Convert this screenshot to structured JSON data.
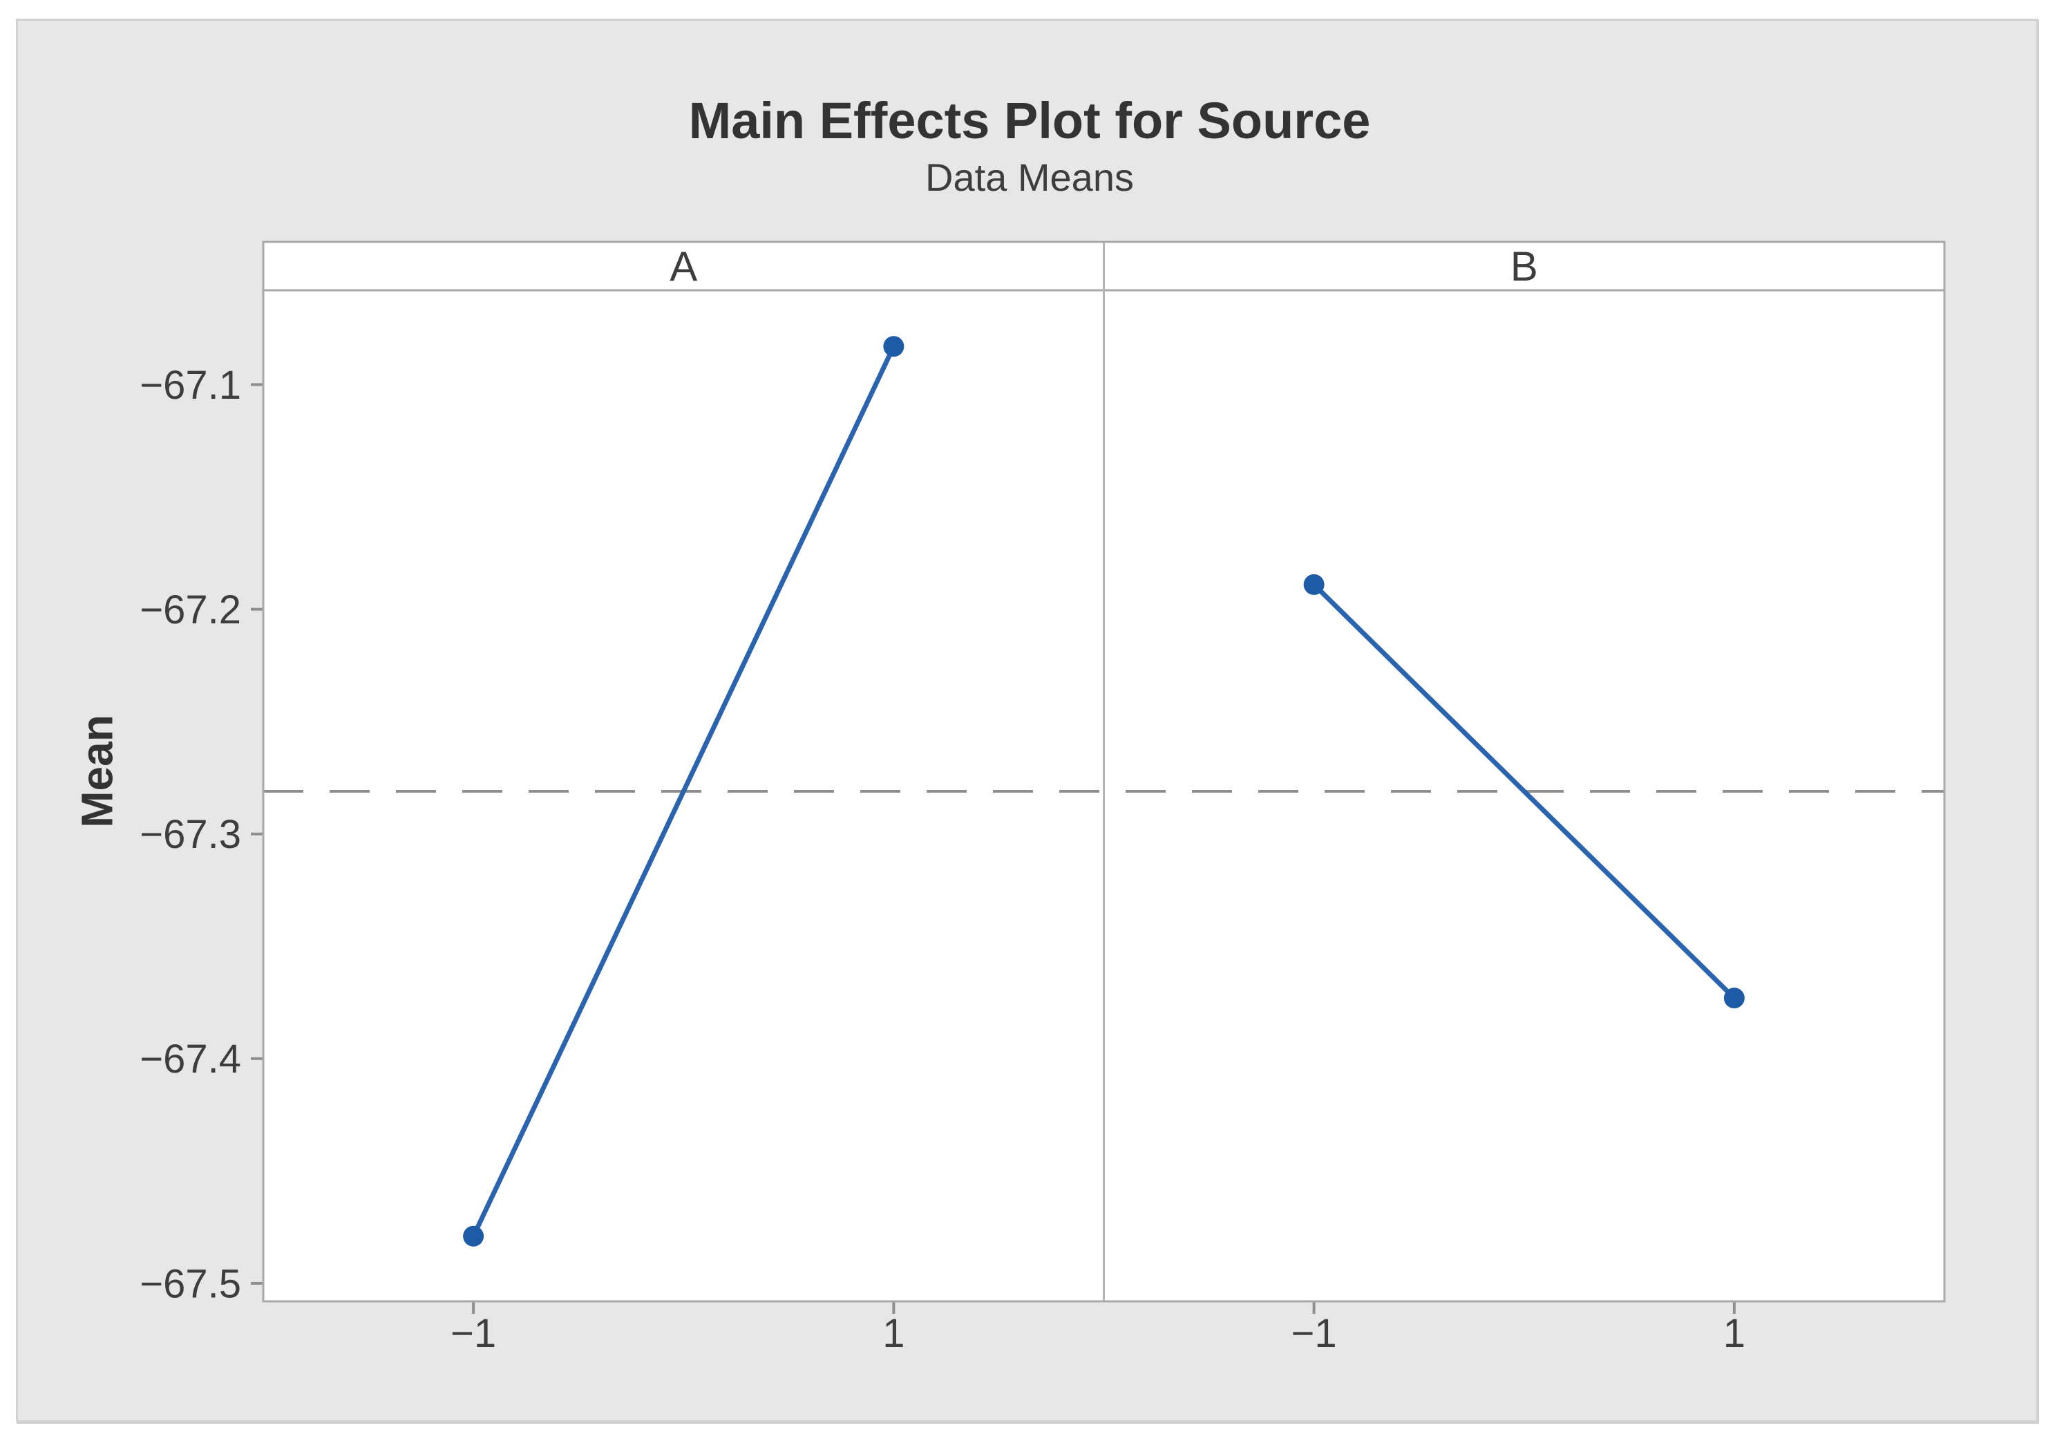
{
  "chart": {
    "title": "Main Effects Plot for Source",
    "subtitle": "Data Means",
    "ylabel": "Mean"
  },
  "chart_data": {
    "type": "line",
    "title": "Main Effects Plot for Source",
    "subtitle": "Data Means",
    "ylabel": "Mean",
    "xlabel": "",
    "panels": [
      {
        "label": "A",
        "categories": [
          "-1",
          "1"
        ],
        "values": [
          -67.479,
          -67.083
        ]
      },
      {
        "label": "B",
        "categories": [
          "-1",
          "1"
        ],
        "values": [
          -67.189,
          -67.373
        ]
      }
    ],
    "yticks": [
      -67.1,
      -67.2,
      -67.3,
      -67.4,
      -67.5
    ],
    "ylim": [
      -67.508,
      -67.058
    ],
    "overall_mean": -67.281,
    "mean_line_style": "dashed",
    "marker": "circle",
    "grid": false,
    "legend": false,
    "colors": {
      "series_line": "#2b64ae",
      "series_marker": "#1e5ba7",
      "mean_line": "#8f8f8f",
      "frame_border": "#a9a9a9",
      "panel_divider": "#b5b5b5",
      "tick_mark": "#8f8f8f",
      "figure_background": "#e7e7e7",
      "panel_background": "#ffffff",
      "title_text": "#333333",
      "label_text": "#3d3d3d"
    }
  }
}
